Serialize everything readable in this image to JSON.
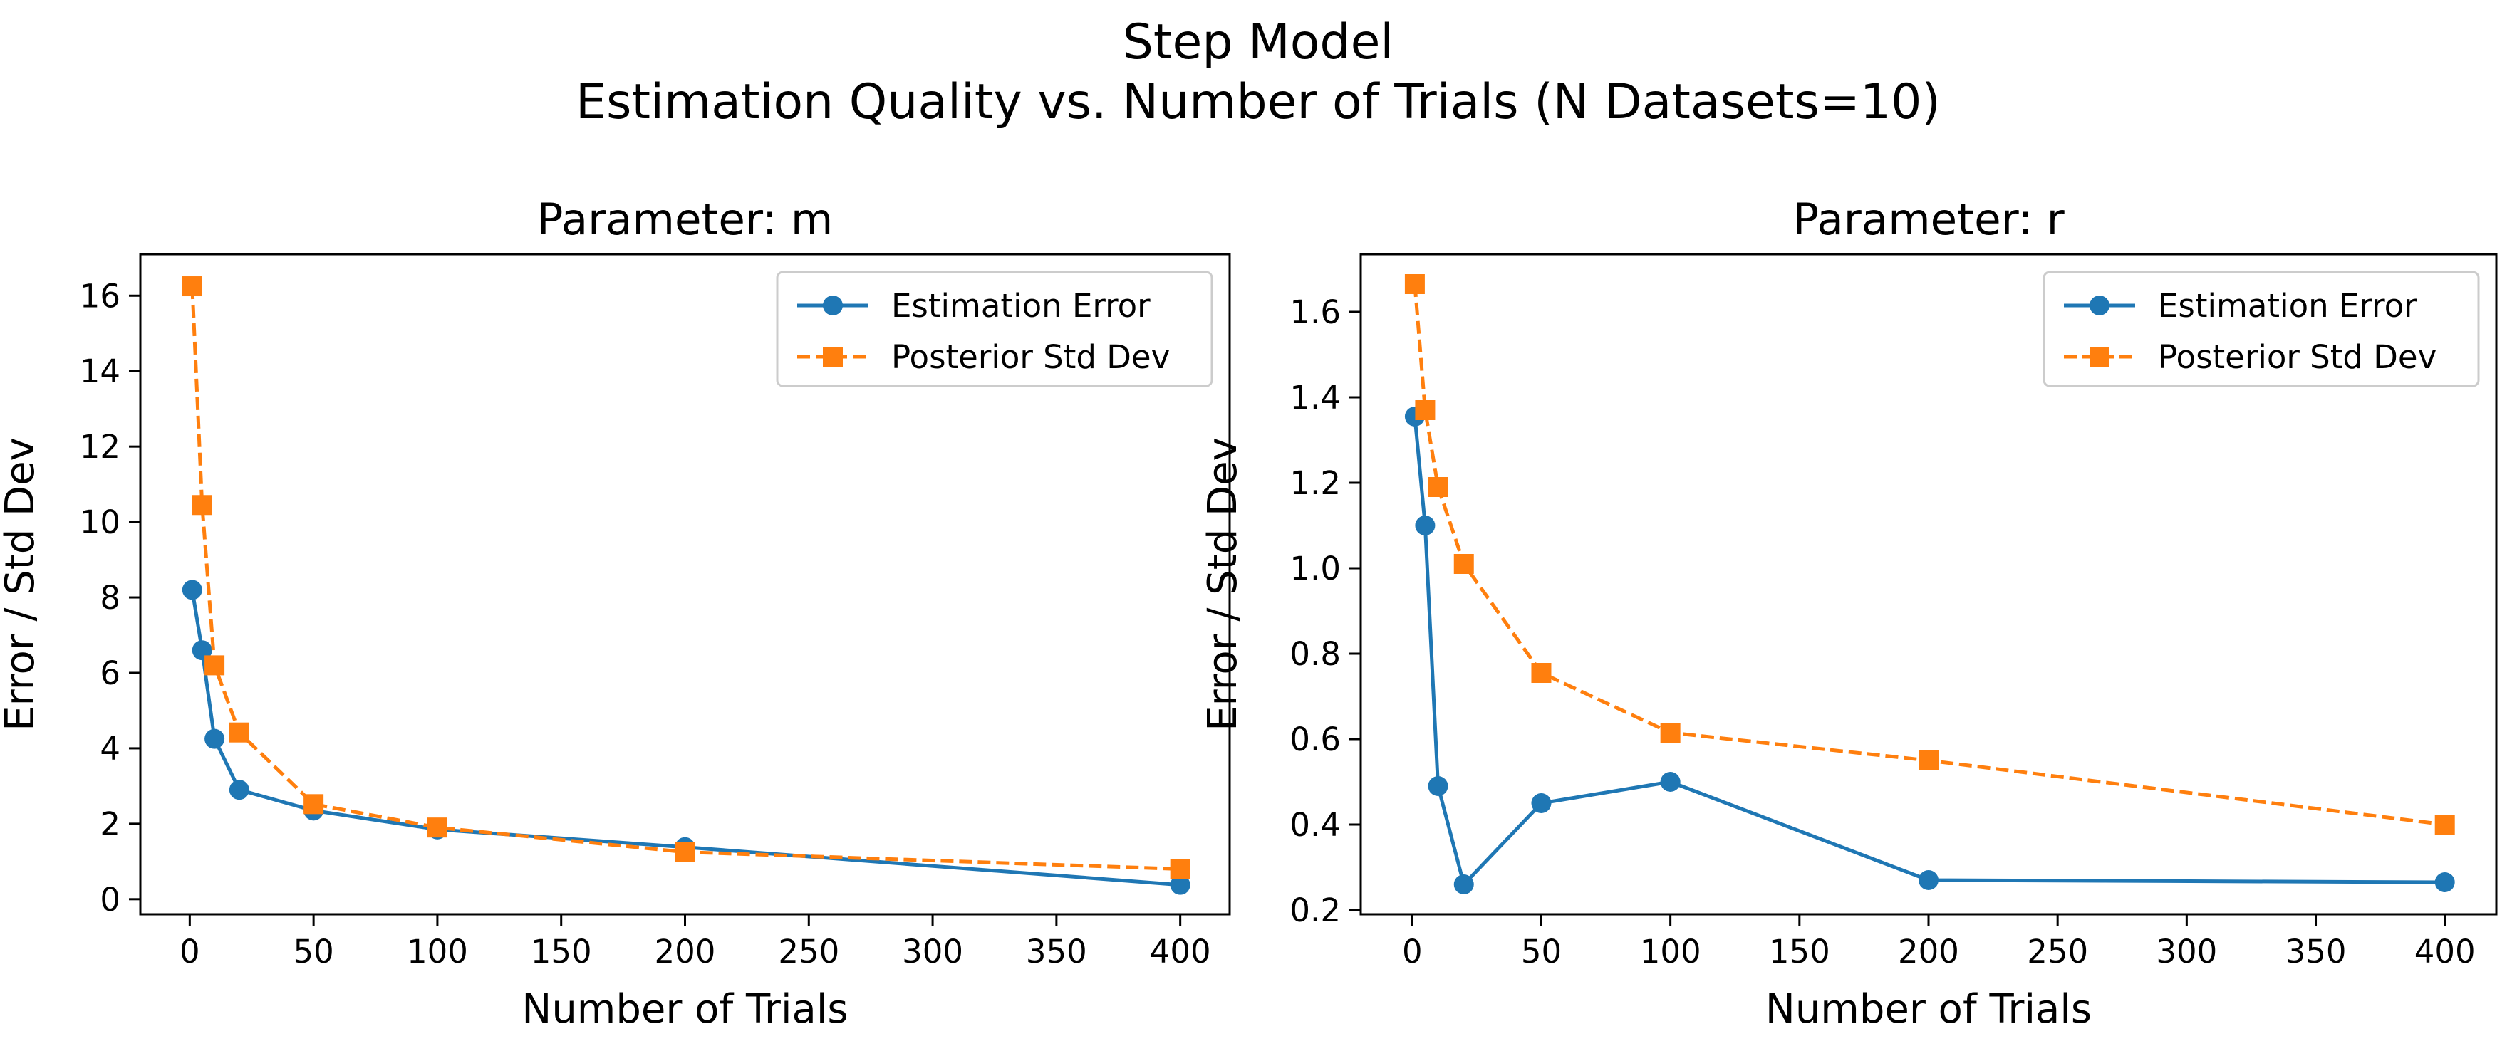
{
  "figure": {
    "title_line1": "Step Model",
    "title_line2": "Estimation Quality vs. Number of Trials (N Datasets=10)"
  },
  "colors": {
    "estimation_error": "#1f77b4",
    "posterior_std": "#ff7f0e"
  },
  "chart_data": [
    {
      "type": "line",
      "title": "Parameter: m",
      "xlabel": "Number of Trials",
      "ylabel": "Error / Std Dev",
      "xlim": [
        -19.95,
        419.95
      ],
      "ylim": [
        -0.4,
        17.1
      ],
      "xticks": [
        0,
        50,
        100,
        150,
        200,
        250,
        300,
        350,
        400
      ],
      "yticks": [
        0,
        2,
        4,
        6,
        8,
        10,
        12,
        14,
        16
      ],
      "ytick_labels": [
        "0",
        "2",
        "4",
        "6",
        "8",
        "10",
        "12",
        "14",
        "16"
      ],
      "grid": false,
      "legend_position": "upper right",
      "x": [
        1,
        5,
        10,
        20,
        50,
        100,
        200,
        400
      ],
      "series": [
        {
          "name": "Estimation Error",
          "marker": "circle",
          "linestyle": "solid",
          "values": [
            8.2,
            6.6,
            4.25,
            2.9,
            2.35,
            1.85,
            1.38,
            0.38
          ]
        },
        {
          "name": "Posterior Std Dev",
          "marker": "square",
          "linestyle": "dashed",
          "values": [
            16.25,
            10.45,
            6.2,
            4.42,
            2.52,
            1.9,
            1.25,
            0.8
          ]
        }
      ]
    },
    {
      "type": "line",
      "title": "Parameter: r",
      "xlabel": "Number of Trials",
      "ylabel": "Error / Std Dev",
      "xlim": [
        -19.95,
        419.95
      ],
      "ylim": [
        0.19,
        1.735
      ],
      "xticks": [
        0,
        50,
        100,
        150,
        200,
        250,
        300,
        350,
        400
      ],
      "yticks": [
        0.2,
        0.4,
        0.6,
        0.8,
        1.0,
        1.2,
        1.4,
        1.6
      ],
      "ytick_labels": [
        "0.2",
        "0.4",
        "0.6",
        "0.8",
        "1.0",
        "1.2",
        "1.4",
        "1.6"
      ],
      "grid": false,
      "legend_position": "upper right",
      "x": [
        1,
        5,
        10,
        20,
        50,
        100,
        200,
        400
      ],
      "series": [
        {
          "name": "Estimation Error",
          "marker": "circle",
          "linestyle": "solid",
          "values": [
            1.355,
            1.1,
            0.49,
            0.26,
            0.45,
            0.5,
            0.27,
            0.265
          ]
        },
        {
          "name": "Posterior Std Dev",
          "marker": "square",
          "linestyle": "dashed",
          "values": [
            1.665,
            1.37,
            1.19,
            1.01,
            0.755,
            0.615,
            0.55,
            0.4
          ]
        }
      ]
    }
  ]
}
